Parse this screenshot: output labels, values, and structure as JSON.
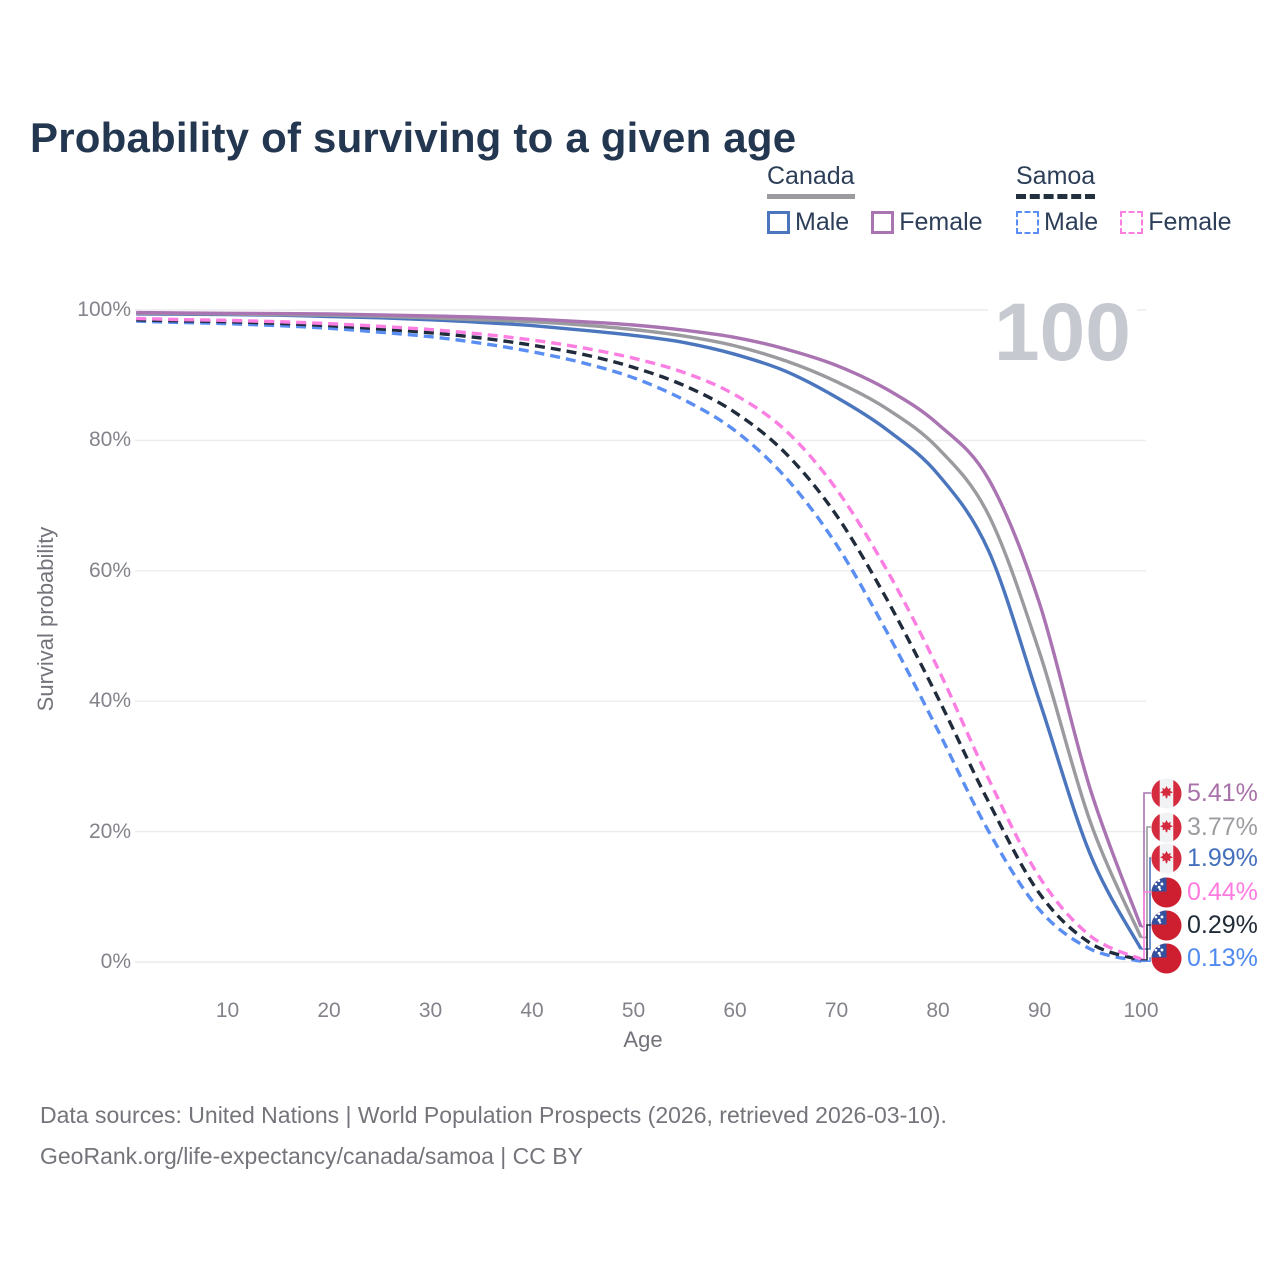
{
  "title": "Probability of surviving to a given age",
  "watermark": "100",
  "legend": {
    "groups": [
      {
        "country": "Canada",
        "dashed": false,
        "underline_color": "#9b9b9f",
        "items": [
          {
            "label": "Male",
            "color": "#4b76be"
          },
          {
            "label": "Female",
            "color": "#a974b1"
          }
        ]
      },
      {
        "country": "Samoa",
        "dashed": true,
        "underline_color": "#22303f",
        "items": [
          {
            "label": "Male",
            "color": "#5b8ef2"
          },
          {
            "label": "Female",
            "color": "#fb7ee2"
          }
        ]
      }
    ]
  },
  "axes": {
    "y_label": "Survival probability",
    "x_label": "Age",
    "y_ticks": [
      {
        "label": "100%",
        "pct": 100
      },
      {
        "label": "80%",
        "pct": 80
      },
      {
        "label": "60%",
        "pct": 60
      },
      {
        "label": "40%",
        "pct": 40
      },
      {
        "label": "20%",
        "pct": 20
      },
      {
        "label": "0%",
        "pct": 0
      }
    ],
    "x_ticks": [
      {
        "label": "10",
        "age": 10
      },
      {
        "label": "20",
        "age": 20
      },
      {
        "label": "30",
        "age": 30
      },
      {
        "label": "40",
        "age": 40
      },
      {
        "label": "50",
        "age": 50
      },
      {
        "label": "60",
        "age": 60
      },
      {
        "label": "70",
        "age": 70
      },
      {
        "label": "80",
        "age": 80
      },
      {
        "label": "90",
        "age": 90
      },
      {
        "label": "100",
        "age": 100
      }
    ]
  },
  "chart_data": {
    "type": "line",
    "title": "Probability of surviving to a given age",
    "xlabel": "Age",
    "ylabel": "Survival probability",
    "x_range": [
      1,
      100
    ],
    "y_range_pct": [
      0,
      100
    ],
    "grid": "horizontal",
    "legend_position": "top-right",
    "ages": [
      1,
      5,
      10,
      15,
      20,
      25,
      30,
      35,
      40,
      45,
      50,
      55,
      60,
      65,
      70,
      75,
      80,
      85,
      90,
      95,
      100
    ],
    "series": [
      {
        "id": "canada-male",
        "country": "Canada",
        "sex": "Male",
        "dashed": false,
        "color": "#4b76be",
        "end_value_pct": 1.99,
        "values": [
          99.4,
          99.35,
          99.3,
          99.2,
          99.0,
          98.8,
          98.5,
          98.1,
          97.6,
          96.9,
          96.1,
          95.0,
          93.2,
          90.6,
          86.6,
          81.6,
          74.8,
          63.0,
          40.0,
          16.5,
          1.99
        ]
      },
      {
        "id": "canada-total",
        "country": "Canada",
        "sex": "Both",
        "dashed": false,
        "color": "#9b9b9f",
        "end_value_pct": 3.77,
        "values": [
          99.5,
          99.45,
          99.4,
          99.3,
          99.2,
          99.05,
          98.8,
          98.5,
          98.2,
          97.7,
          97.0,
          96.0,
          94.5,
          92.2,
          89.0,
          84.8,
          78.8,
          68.5,
          47.5,
          21.5,
          3.77
        ]
      },
      {
        "id": "canada-female",
        "country": "Canada",
        "sex": "Female",
        "dashed": false,
        "color": "#a974b1",
        "end_value_pct": 5.41,
        "values": [
          99.6,
          99.55,
          99.5,
          99.45,
          99.4,
          99.25,
          99.1,
          98.9,
          98.6,
          98.2,
          97.7,
          96.9,
          95.8,
          94.0,
          91.5,
          87.8,
          82.5,
          74.0,
          55.0,
          26.5,
          5.41
        ]
      },
      {
        "id": "samoa-male",
        "country": "Samoa",
        "sex": "Male",
        "dashed": true,
        "color": "#5b8ef2",
        "end_value_pct": 0.13,
        "values": [
          98.3,
          98.1,
          97.9,
          97.6,
          97.2,
          96.6,
          95.9,
          94.9,
          93.6,
          91.9,
          89.6,
          86.2,
          81.5,
          74.3,
          64.0,
          50.5,
          35.5,
          20.0,
          8.0,
          2.0,
          0.13
        ]
      },
      {
        "id": "samoa-total",
        "country": "Samoa",
        "sex": "Both",
        "dashed": true,
        "color": "#202c3c",
        "end_value_pct": 0.29,
        "values": [
          98.5,
          98.35,
          98.2,
          97.95,
          97.6,
          97.1,
          96.5,
          95.7,
          94.6,
          93.2,
          91.2,
          88.4,
          84.3,
          78.0,
          68.5,
          55.5,
          40.5,
          24.5,
          10.5,
          2.9,
          0.29
        ]
      },
      {
        "id": "samoa-female",
        "country": "Samoa",
        "sex": "Female",
        "dashed": true,
        "color": "#fb7ee2",
        "end_value_pct": 0.44,
        "values": [
          98.7,
          98.55,
          98.4,
          98.2,
          97.9,
          97.5,
          97.0,
          96.3,
          95.4,
          94.2,
          92.6,
          90.4,
          87.0,
          81.5,
          72.5,
          60.0,
          45.0,
          28.0,
          13.0,
          4.0,
          0.44
        ]
      }
    ]
  },
  "end_labels": [
    {
      "series": "canada-female",
      "flag": "canada",
      "value": "5.41%",
      "color": "#a871aa"
    },
    {
      "series": "canada-total",
      "flag": "canada",
      "value": "3.77%",
      "color": "#9d9da1"
    },
    {
      "series": "canada-male",
      "flag": "canada",
      "value": "1.99%",
      "color": "#4470bc"
    },
    {
      "series": "samoa-female",
      "flag": "samoa",
      "value": "0.44%",
      "color": "#ff7be0"
    },
    {
      "series": "samoa-total",
      "flag": "samoa",
      "value": "0.29%",
      "color": "#222c38"
    },
    {
      "series": "samoa-male",
      "flag": "samoa",
      "value": "0.13%",
      "color": "#4f8af0"
    }
  ],
  "footer": {
    "line1": "Data sources: United Nations | World Population Prospects (2026, retrieved 2026-03-10).",
    "line2": "GeoRank.org/life-expectancy/canada/samoa | CC BY"
  }
}
